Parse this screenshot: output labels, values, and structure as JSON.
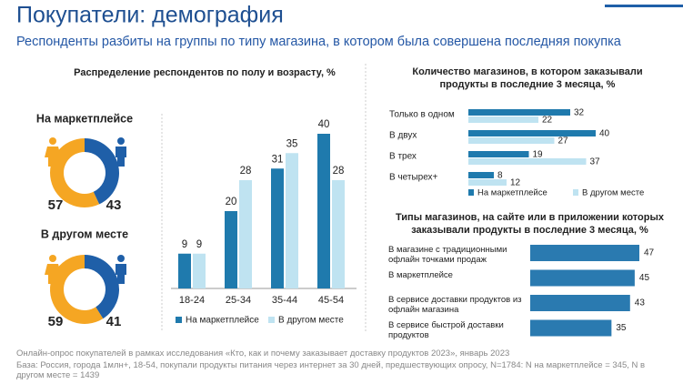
{
  "title": "Покупатели: демография",
  "subtitle": "Респонденты разбиты на группы по типу магазина, в котором была совершена последняя покупка",
  "chart_data": [
    {
      "type": "donut",
      "title": "На маркетплейсе",
      "values": [
        57,
        43
      ],
      "colors": [
        "#f5a623",
        "#1f5fa8"
      ]
    },
    {
      "type": "donut",
      "title": "В другом месте",
      "values": [
        59,
        41
      ],
      "colors": [
        "#f5a623",
        "#1f5fa8"
      ]
    },
    {
      "type": "bar",
      "title": "Распределение респондентов по полу и возрасту, %",
      "categories": [
        "18-24",
        "25-34",
        "35-44",
        "45-54"
      ],
      "series": [
        {
          "name": "На маркетплейсе",
          "color": "#1f7aad",
          "values": [
            9,
            20,
            31,
            40
          ]
        },
        {
          "name": "В другом месте",
          "color": "#bfe3f1",
          "values": [
            9,
            28,
            35,
            28
          ]
        }
      ]
    },
    {
      "type": "hbar",
      "title": "Количество магазинов, в котором заказывали продукты в последние 3 месяца, %",
      "categories": [
        "Только в одном",
        "В двух",
        "В трех",
        "В четырех+"
      ],
      "series": [
        {
          "name": "На маркетплейсе",
          "color": "#1f7aad",
          "values": [
            32,
            40,
            19,
            8
          ]
        },
        {
          "name": "В другом месте",
          "color": "#bfe3f1",
          "values": [
            22,
            27,
            37,
            12
          ]
        }
      ]
    },
    {
      "type": "hbar",
      "title": "Типы магазинов, на сайте или в приложении которых заказывали продукты в последние 3 месяца, %",
      "categories": [
        "В магазине с традиционными офлайн точками продаж",
        "В маркетплейсе",
        "В сервисе доставки продуктов из офлайн магазина",
        "В сервисе быстрой доставки продуктов"
      ],
      "series": [
        {
          "color": "#2a7ab0",
          "values": [
            47,
            45,
            43,
            35
          ]
        }
      ]
    }
  ],
  "footnote": [
    "Онлайн-опрос покупателей в рамках исследования «Кто, как и почему заказывает доставку продуктов 2023», январь 2023",
    "База: Россия, города 1млн+, 18-54, покупали продукты питания через интернет за 30 дней, предшествующих опросу, N=1784: N на маркетплейсе = 345, N в другом месте = 1439"
  ]
}
